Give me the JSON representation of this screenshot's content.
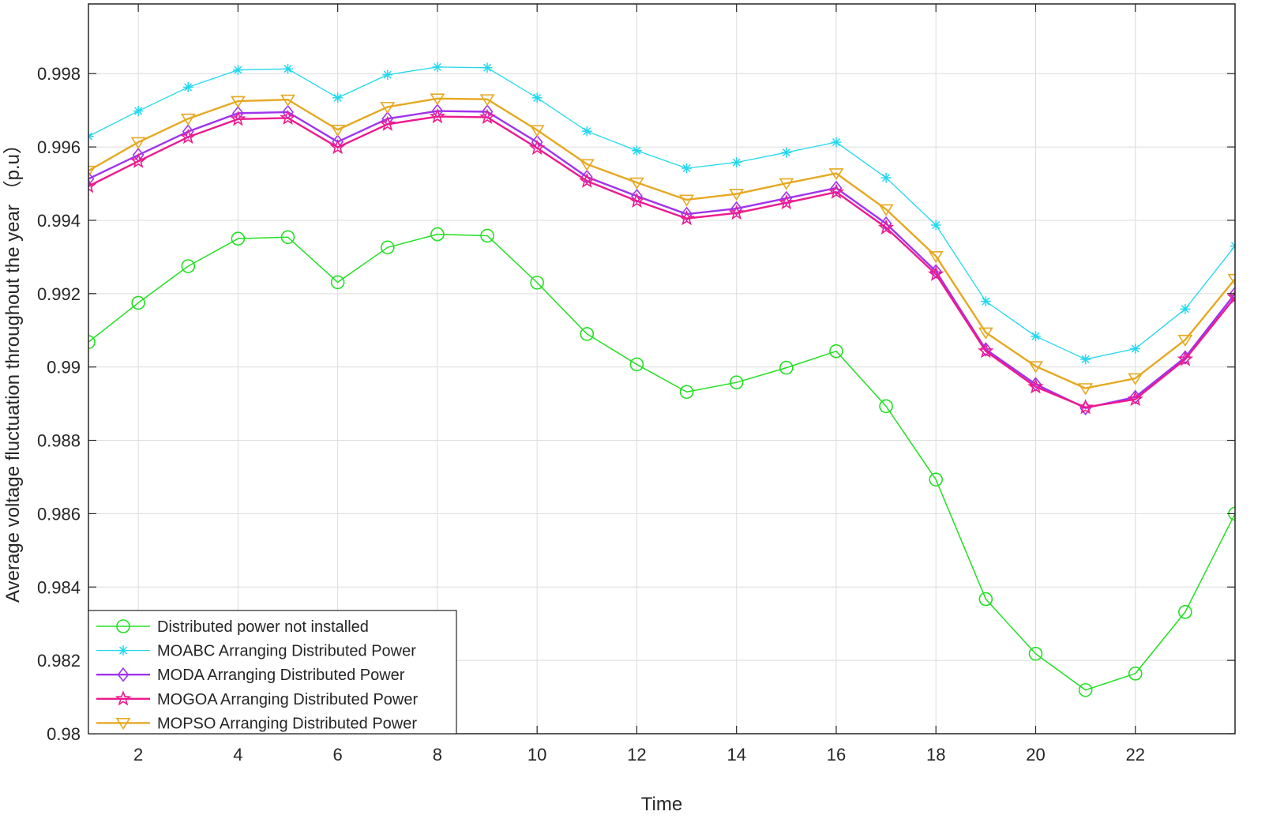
{
  "chart_data": {
    "type": "line",
    "title": "",
    "xlabel": "Time",
    "ylabel": "Average voltage fluctuation throughout the year （p.u）",
    "xlim": [
      1,
      24
    ],
    "ylim": [
      0.98,
      0.9999
    ],
    "xticks": [
      2,
      4,
      6,
      8,
      10,
      12,
      14,
      16,
      18,
      20,
      22
    ],
    "xtick_labels": [
      "2",
      "4",
      "6",
      "8",
      "10",
      "12",
      "14",
      "16",
      "18",
      "20",
      "22"
    ],
    "yticks": [
      0.98,
      0.982,
      0.984,
      0.986,
      0.988,
      0.99,
      0.992,
      0.994,
      0.996,
      0.998
    ],
    "ytick_labels": [
      "0.98",
      "0.982",
      "0.984",
      "0.986",
      "0.988",
      "0.99",
      "0.992",
      "0.994",
      "0.996",
      "0.998"
    ],
    "grid": true,
    "legend_position": "bottom-left",
    "x": [
      1,
      2,
      3,
      4,
      5,
      6,
      7,
      8,
      9,
      10,
      11,
      12,
      13,
      14,
      15,
      16,
      17,
      18,
      19,
      20,
      21,
      22,
      23,
      24
    ],
    "series": [
      {
        "name": "Distributed power not installed",
        "color": "#22e022",
        "marker": "circle",
        "values": [
          0.99068,
          0.99175,
          0.99275,
          0.9935,
          0.99354,
          0.99231,
          0.99326,
          0.99362,
          0.99358,
          0.9923,
          0.9909,
          0.99007,
          0.98932,
          0.98958,
          0.98998,
          0.99043,
          0.98893,
          0.98693,
          0.98367,
          0.98218,
          0.98119,
          0.98164,
          0.98332,
          0.986
        ]
      },
      {
        "name": "MOABC Arranging Distributed Power",
        "color": "#22d8ee",
        "marker": "asterisk",
        "values": [
          0.99629,
          0.99698,
          0.99763,
          0.9981,
          0.99813,
          0.99734,
          0.99797,
          0.99818,
          0.99816,
          0.99734,
          0.99643,
          0.9959,
          0.99542,
          0.99558,
          0.99585,
          0.99613,
          0.99516,
          0.99387,
          0.99179,
          0.99084,
          0.99021,
          0.9905,
          0.99158,
          0.9933
        ]
      },
      {
        "name": "MODA Arranging Distributed Power",
        "color": "#a033ee",
        "marker": "diamond",
        "values": [
          0.99513,
          0.99578,
          0.99642,
          0.99692,
          0.99695,
          0.99614,
          0.99677,
          0.99698,
          0.99696,
          0.99613,
          0.99518,
          0.99466,
          0.99417,
          0.99432,
          0.9946,
          0.99488,
          0.99391,
          0.99261,
          0.99048,
          0.98953,
          0.98888,
          0.98918,
          0.99026,
          0.992
        ]
      },
      {
        "name": "MOGOA Arranging Distributed Power",
        "color": "#ee1a8e",
        "marker": "pentagram",
        "values": [
          0.99493,
          0.99561,
          0.99627,
          0.99676,
          0.99679,
          0.99599,
          0.99662,
          0.99683,
          0.99681,
          0.99597,
          0.99507,
          0.99453,
          0.99405,
          0.9942,
          0.99448,
          0.99477,
          0.9938,
          0.99253,
          0.99043,
          0.98946,
          0.9889,
          0.98912,
          0.99021,
          0.9919
        ]
      },
      {
        "name": "MOPSO Arranging Distributed Power",
        "color": "#e6a820",
        "marker": "triangle-down",
        "values": [
          0.99535,
          0.99613,
          0.99677,
          0.99725,
          0.99729,
          0.99647,
          0.99709,
          0.99732,
          0.9973,
          0.99646,
          0.99553,
          0.99503,
          0.99456,
          0.99472,
          0.99501,
          0.99528,
          0.9943,
          0.99302,
          0.99094,
          0.99002,
          0.98942,
          0.98969,
          0.99074,
          0.9924
        ]
      }
    ]
  }
}
